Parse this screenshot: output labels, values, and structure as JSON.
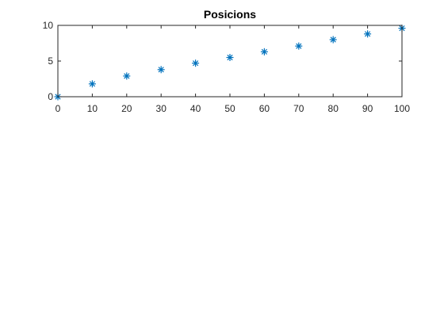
{
  "figure": {
    "background": "#ffffff"
  },
  "chart_data": {
    "type": "scatter",
    "title": "Posicions",
    "xlabel": "",
    "ylabel": "",
    "xlim": [
      0,
      100
    ],
    "ylim": [
      0,
      10
    ],
    "xticks": [
      0,
      10,
      20,
      30,
      40,
      50,
      60,
      70,
      80,
      90,
      100
    ],
    "yticks": [
      0,
      5,
      10
    ],
    "grid": false,
    "marker": "asterisk",
    "color": "#0072bd",
    "series": [
      {
        "x": [
          0,
          10,
          20,
          30,
          40,
          50,
          60,
          70,
          80,
          90,
          100
        ],
        "y": [
          0,
          1.8,
          2.9,
          3.8,
          4.7,
          5.5,
          6.3,
          7.1,
          8.0,
          8.8,
          9.6
        ]
      }
    ]
  }
}
